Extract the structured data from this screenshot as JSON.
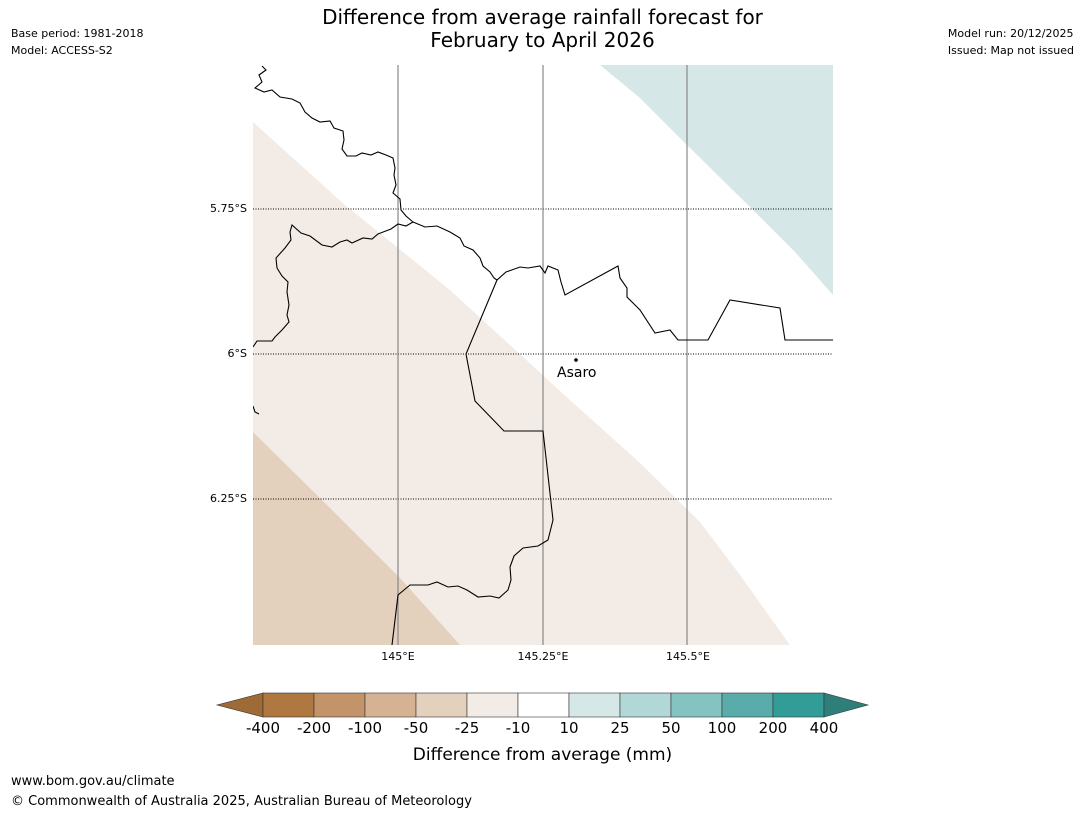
{
  "title": {
    "line1": "Difference from average rainfall forecast for",
    "line2": "February to April 2026"
  },
  "meta_left": {
    "base_period": "Base period: 1981-2018",
    "model": "Model: ACCESS-S2"
  },
  "meta_right": {
    "model_run": "Model run: 20/12/2025",
    "issued": "Issued: Map not issued"
  },
  "map": {
    "lat_labels": [
      "5.75°S",
      "6°S",
      "6.25°S"
    ],
    "lon_labels": [
      "145°E",
      "145.25°E",
      "145.5°E"
    ],
    "place": {
      "name": "Asaro"
    },
    "colors": {
      "dry_light": "#f3ece6",
      "dry_medium": "#e3d0bd",
      "wet_light": "#d5e8e7",
      "border": "#000000",
      "gridline": "#888888"
    }
  },
  "colorbar": {
    "ticks": [
      "-400",
      "-200",
      "-100",
      "-50",
      "-25",
      "-10",
      "10",
      "25",
      "50",
      "100",
      "200",
      "400"
    ],
    "colors": [
      "#9e6a35",
      "#b07841",
      "#c39469",
      "#d5b293",
      "#e3d0bd",
      "#f3ece6",
      "#ffffff",
      "#d5e8e7",
      "#b1d7d6",
      "#85c3c0",
      "#5aacaa",
      "#329c97",
      "#2e7e7a"
    ],
    "label": "Difference from average (mm)"
  },
  "footer": {
    "url": "www.bom.gov.au/climate",
    "copyright": "© Commonwealth of Australia 2025, Australian Bureau of Meteorology"
  }
}
